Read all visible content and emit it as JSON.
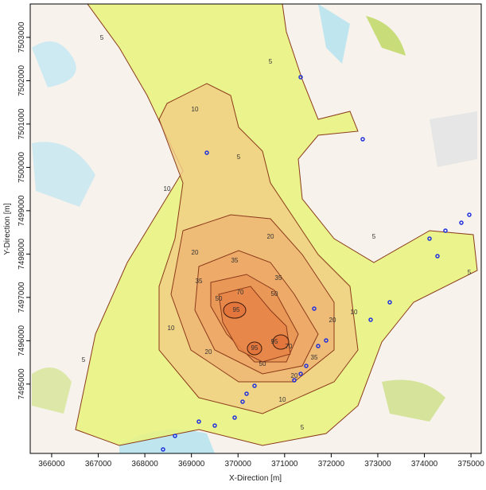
{
  "map": {
    "x_axis": {
      "label": "X-Direction [m]",
      "range": [
        365540,
        375220
      ],
      "ticks": [
        366000,
        367000,
        368000,
        369000,
        370000,
        371000,
        372000,
        373000,
        374000,
        375000
      ]
    },
    "y_axis": {
      "label": "Y-Direction [m]",
      "range": [
        7493400,
        7503770
      ],
      "ticks": [
        7495000,
        7496000,
        7497000,
        7498000,
        7499000,
        7500000,
        7501000,
        7502000,
        7503000
      ]
    },
    "contour_levels": [
      5,
      10,
      20,
      35,
      50,
      70,
      95
    ],
    "contour_colors": [
      "#e9f27c",
      "#f1cf85",
      "#efb774",
      "#eca765",
      "#e99556",
      "#e68548",
      "#e0733a"
    ]
  }
}
